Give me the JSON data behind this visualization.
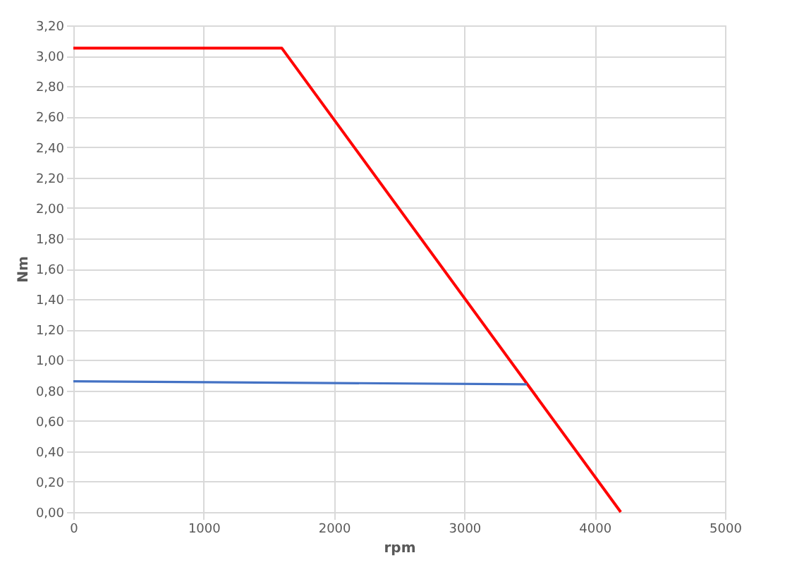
{
  "chart_data": {
    "type": "line",
    "xlabel": "rpm",
    "ylabel": "Nm",
    "xlim": [
      0,
      5000
    ],
    "xticks": [
      0,
      1000,
      2000,
      3000,
      4000,
      5000
    ],
    "ylim": [
      0,
      3.2
    ],
    "yticks": [
      {
        "value": 0,
        "label": "0,00"
      },
      {
        "value": 0.2,
        "label": "0,20"
      },
      {
        "value": 0.4,
        "label": "0,40"
      },
      {
        "value": 0.6,
        "label": "0,60"
      },
      {
        "value": 0.8,
        "label": "0,80"
      },
      {
        "value": 1.0,
        "label": "1,00"
      },
      {
        "value": 1.2,
        "label": "1,20"
      },
      {
        "value": 1.4,
        "label": "1,40"
      },
      {
        "value": 1.6,
        "label": "1,60"
      },
      {
        "value": 1.8,
        "label": "1,80"
      },
      {
        "value": 2.0,
        "label": "2,00"
      },
      {
        "value": 2.2,
        "label": "2,20"
      },
      {
        "value": 2.4,
        "label": "2,40"
      },
      {
        "value": 2.6,
        "label": "2,60"
      },
      {
        "value": 2.8,
        "label": "2,80"
      },
      {
        "value": 3.0,
        "label": "3,00"
      },
      {
        "value": 3.2,
        "label": "3,20"
      }
    ],
    "grid": true,
    "legend": false,
    "marker": "none",
    "line_style": "solid",
    "series": [
      {
        "color": "#ff0000",
        "x": [
          0,
          1600,
          4200
        ],
        "values": [
          3.05,
          3.05,
          0
        ]
      },
      {
        "color": "#4472c4",
        "x": [
          0,
          3480
        ],
        "values": [
          0.86,
          0.84
        ]
      }
    ]
  }
}
